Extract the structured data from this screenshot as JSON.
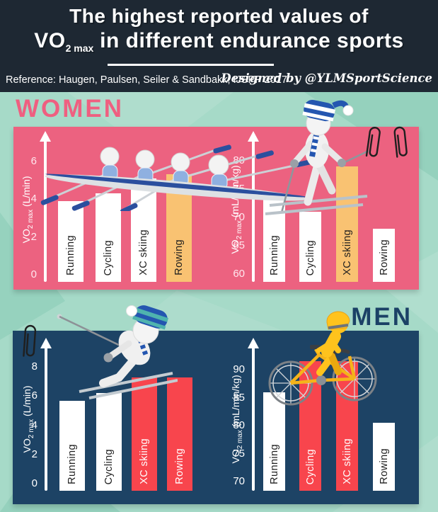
{
  "header": {
    "title_line1": "The highest reported values of",
    "title_vo2_prefix": "VO",
    "title_vo2_sub": "2 max",
    "title_line2_rest": " in different endurance sports",
    "reference": "Reference: Haugen, Paulsen, Seiler & Sandbakk, IJSPP 2017",
    "designed_by": "Designed by @YLMSportScience"
  },
  "sections": {
    "women": {
      "label": "WOMEN"
    },
    "men": {
      "label": "MEN"
    }
  },
  "colors": {
    "background_teal": "#a6dac8",
    "header_bg": "#1e2833",
    "women_accent": "#ef5f80",
    "women_panel": "#ec6280",
    "men_accent": "#1b4166",
    "men_panel": "#1d4365",
    "bar_white": "#ffffff",
    "bar_orange": "#f9c272",
    "bar_red": "#f8454d"
  },
  "decorations": [
    "rowing-quad-illustration",
    "xc-skier-illustration",
    "downhill-skier-illustration",
    "cyclist-illustration",
    "paperclip-icon"
  ],
  "chart_data": [
    {
      "id": "women-absolute",
      "section": "WOMEN",
      "type": "bar",
      "categories": [
        "Running",
        "Cycling",
        "XC skiing",
        "Rowing"
      ],
      "values": [
        3.9,
        4.3,
        5.1,
        5.3
      ],
      "ylabel": "VO2 max (L/min)",
      "ylabel_prefix": "VO",
      "ylabel_sub": "2 max",
      "ylabel_unit": " (L/min)",
      "yticks": [
        0,
        2,
        4,
        6
      ],
      "ybase": 0,
      "ylim": [
        0,
        7
      ],
      "grid": false,
      "legend": "none",
      "bar_colors": [
        "#ffffff",
        "#ffffff",
        "#ffffff",
        "#f9c272"
      ],
      "label_colors": [
        "#1e1e1e",
        "#1e1e1e",
        "#1e1e1e",
        "#1e1e1e"
      ],
      "tick_color": "#ffe7ee",
      "highlighted": [
        "Rowing"
      ]
    },
    {
      "id": "women-relative",
      "section": "WOMEN",
      "type": "bar",
      "categories": [
        "Running",
        "Cycling",
        "XC skiing",
        "Rowing"
      ],
      "values": [
        73.5,
        71,
        79,
        68
      ],
      "ylabel": "VO2 max (mL/min/kg)",
      "ylabel_prefix": "VO",
      "ylabel_sub": "2 max",
      "ylabel_unit": " (mL/min/kg)",
      "yticks": [
        60,
        65,
        70,
        75,
        80
      ],
      "ybase": 60,
      "ylim": [
        60,
        83
      ],
      "grid": false,
      "legend": "none",
      "bar_colors": [
        "#ffffff",
        "#ffffff",
        "#f9c272",
        "#ffffff"
      ],
      "label_colors": [
        "#1e1e1e",
        "#1e1e1e",
        "#1e1e1e",
        "#1e1e1e"
      ],
      "tick_color": "#ffe7ee",
      "highlighted": [
        "XC skiing"
      ]
    },
    {
      "id": "men-absolute",
      "section": "MEN",
      "type": "bar",
      "categories": [
        "Running",
        "Cycling",
        "XC skiing",
        "Rowing"
      ],
      "values": [
        5.7,
        6.2,
        7.3,
        7.3
      ],
      "ylabel": "VO2 max (L/min)",
      "ylabel_prefix": "VO",
      "ylabel_sub": "2 max",
      "ylabel_unit": " (L/min)",
      "yticks": [
        0,
        2,
        4,
        6,
        8
      ],
      "ybase": 0,
      "ylim": [
        0,
        9
      ],
      "grid": false,
      "legend": "none",
      "bar_colors": [
        "#ffffff",
        "#ffffff",
        "#f8454d",
        "#f8454d"
      ],
      "label_colors": [
        "#1e1e1e",
        "#1e1e1e",
        "#ffffff",
        "#ffffff"
      ],
      "tick_color": "#ffffff",
      "highlighted": [
        "XC skiing",
        "Rowing"
      ]
    },
    {
      "id": "men-relative",
      "section": "MEN",
      "type": "bar",
      "categories": [
        "Running",
        "Cycling",
        "XC skiing",
        "Rowing"
      ],
      "values": [
        86,
        91.5,
        91.5,
        80.5
      ],
      "ylabel": "VO2 max (mL/min/kg)",
      "ylabel_prefix": "VO",
      "ylabel_sub": "2 max",
      "ylabel_unit": " (mL/min/kg)",
      "yticks": [
        70,
        75,
        80,
        85,
        90
      ],
      "ybase": 70,
      "ylim": [
        70,
        94
      ],
      "grid": false,
      "legend": "none",
      "bar_colors": [
        "#ffffff",
        "#f8454d",
        "#f8454d",
        "#ffffff"
      ],
      "label_colors": [
        "#1e1e1e",
        "#ffffff",
        "#ffffff",
        "#1e1e1e"
      ],
      "tick_color": "#ffffff",
      "highlighted": [
        "Cycling",
        "XC skiing"
      ]
    }
  ]
}
